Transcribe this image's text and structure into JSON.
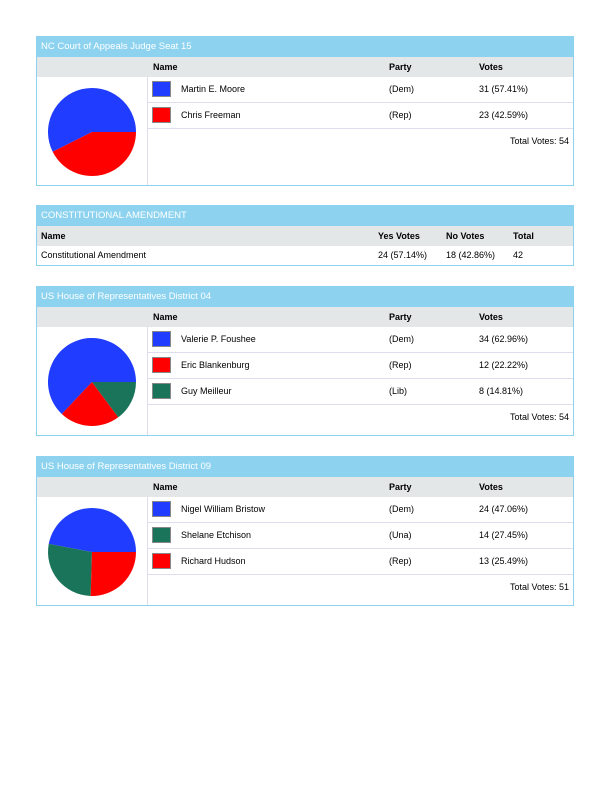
{
  "colors": {
    "Dem": "#1f3cff",
    "Rep": "#ff0000",
    "Lib": "#19745a",
    "Una": "#19745a"
  },
  "races": [
    {
      "title": "NC Court of Appeals Judge Seat 15",
      "headers": {
        "name": "Name",
        "party": "Party",
        "votes": "Votes"
      },
      "candidates": [
        {
          "name": "Martin E. Moore",
          "party": "(Dem)",
          "votes": "31 (57.41%)",
          "share": 57.41,
          "color": "#1f3cff"
        },
        {
          "name": "Chris Freeman",
          "party": "(Rep)",
          "votes": "23 (42.59%)",
          "share": 42.59,
          "color": "#ff0000"
        }
      ],
      "total": "Total Votes: 54"
    },
    {
      "title": "US House of Representatives District 04",
      "headers": {
        "name": "Name",
        "party": "Party",
        "votes": "Votes"
      },
      "candidates": [
        {
          "name": "Valerie P. Foushee",
          "party": "(Dem)",
          "votes": "34 (62.96%)",
          "share": 62.96,
          "color": "#1f3cff"
        },
        {
          "name": "Eric Blankenburg",
          "party": "(Rep)",
          "votes": "12 (22.22%)",
          "share": 22.22,
          "color": "#ff0000"
        },
        {
          "name": "Guy Meilleur",
          "party": "(Lib)",
          "votes": "8 (14.81%)",
          "share": 14.81,
          "color": "#19745a"
        }
      ],
      "total": "Total Votes: 54"
    },
    {
      "title": "US House of Representatives District 09",
      "headers": {
        "name": "Name",
        "party": "Party",
        "votes": "Votes"
      },
      "candidates": [
        {
          "name": "Nigel William Bristow",
          "party": "(Dem)",
          "votes": "24 (47.06%)",
          "share": 47.06,
          "color": "#1f3cff"
        },
        {
          "name": "Shelane Etchison",
          "party": "(Una)",
          "votes": "14 (27.45%)",
          "share": 27.45,
          "color": "#19745a"
        },
        {
          "name": "Richard Hudson",
          "party": "(Rep)",
          "votes": "13 (25.49%)",
          "share": 25.49,
          "color": "#ff0000"
        }
      ],
      "total": "Total Votes: 51"
    }
  ],
  "amendment": {
    "title": "CONSTITUTIONAL AMENDMENT",
    "headers": {
      "name": "Name",
      "yes": "Yes Votes",
      "no": "No Votes",
      "total": "Total"
    },
    "row": {
      "name": "Constitutional Amendment",
      "yes": "24 (57.14%)",
      "no": "18 (42.86%)",
      "total": "42"
    }
  }
}
